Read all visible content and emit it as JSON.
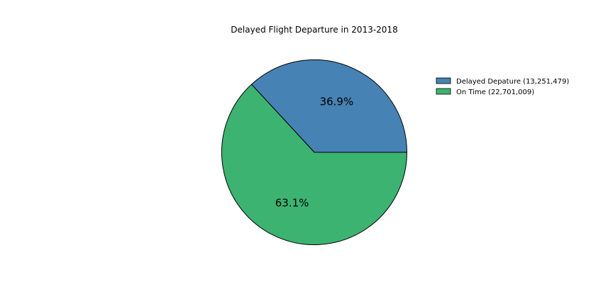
{
  "chart_data": {
    "type": "pie",
    "title": "Delayed Flight Departure in 2013-2018",
    "slices": [
      {
        "label": "Delayed Depature (13,251,479)",
        "value": 13251479,
        "pct_label": "36.9%",
        "color": "#4682b4"
      },
      {
        "label": "On Time (22,701,009)",
        "value": 22701009,
        "pct_label": "63.1%",
        "color": "#3cb371"
      }
    ],
    "start_angle_deg": 0,
    "direction": "counterclockwise",
    "legend_position": "right"
  }
}
